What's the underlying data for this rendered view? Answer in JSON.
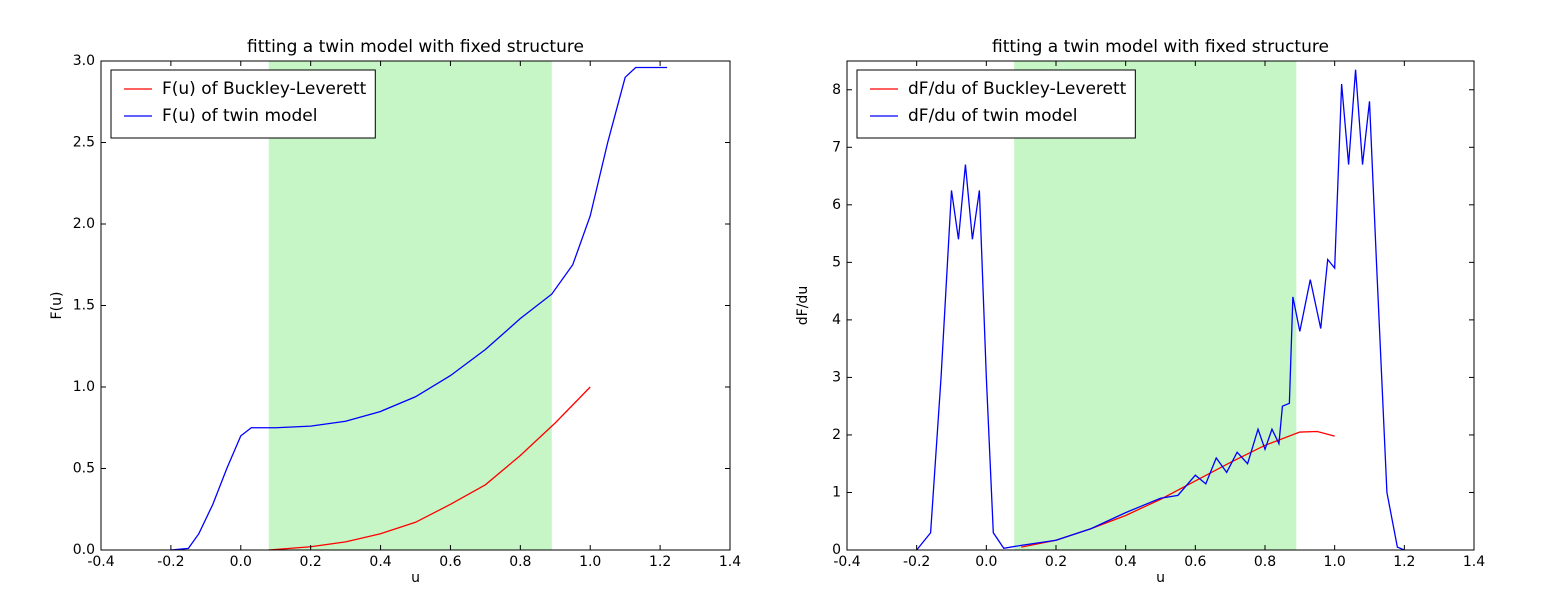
{
  "chart_data": [
    {
      "type": "line",
      "title": "fitting a twin model with fixed structure",
      "xlabel": "u",
      "ylabel": "F(u)",
      "xlim": [
        -0.4,
        1.4
      ],
      "xticks": [
        -0.4,
        -0.2,
        {
          "value": 0,
          "label": "0.0"
        },
        0.2,
        0.4,
        0.6,
        0.8,
        {
          "value": 1,
          "label": "1.0"
        },
        1.2,
        1.4
      ],
      "ylim": [
        0,
        3
      ],
      "yticks": [
        {
          "value": 0,
          "label": "0.0"
        },
        0.5,
        {
          "value": 1,
          "label": "1.0"
        },
        1.5,
        {
          "value": 2,
          "label": "2.0"
        },
        2.5,
        {
          "value": 3,
          "label": "3.0"
        }
      ],
      "grid": false,
      "legend": "upper left",
      "span": [
        0.08,
        0.89
      ],
      "span_color": "#c6f5c6",
      "series": [
        {
          "name": "F(u) of Buckley-Leverett",
          "color": "#ff0000",
          "x": [
            0.08,
            0.2,
            0.3,
            0.4,
            0.5,
            0.6,
            0.7,
            0.8,
            0.9,
            1.0
          ],
          "values": [
            0,
            0.02,
            0.05,
            0.1,
            0.17,
            0.28,
            0.4,
            0.58,
            0.78,
            1.0
          ]
        },
        {
          "name": "F(u) of twin model",
          "color": "#0000ff",
          "x": [
            -0.2,
            -0.15,
            -0.12,
            -0.08,
            -0.04,
            0,
            0.03,
            0.1,
            0.2,
            0.3,
            0.4,
            0.5,
            0.6,
            0.7,
            0.8,
            0.89,
            0.95,
            1.0,
            1.05,
            1.1,
            1.13,
            1.22
          ],
          "values": [
            0,
            0.01,
            0.1,
            0.28,
            0.5,
            0.7,
            0.75,
            0.75,
            0.76,
            0.79,
            0.85,
            0.94,
            1.07,
            1.23,
            1.42,
            1.57,
            1.75,
            2.05,
            2.5,
            2.9,
            2.96,
            2.96
          ]
        }
      ]
    },
    {
      "type": "line",
      "title": "fitting a twin model with fixed structure",
      "xlabel": "u",
      "ylabel": "dF/du",
      "xlim": [
        -0.4,
        1.4
      ],
      "xticks": [
        -0.4,
        -0.2,
        {
          "value": 0,
          "label": "0.0"
        },
        0.2,
        0.4,
        0.6,
        0.8,
        {
          "value": 1,
          "label": "1.0"
        },
        1.2,
        1.4
      ],
      "ylim": [
        0,
        8.5
      ],
      "yticks": [
        0,
        1,
        2,
        3,
        4,
        5,
        6,
        7,
        8
      ],
      "grid": false,
      "legend": "upper left",
      "span": [
        0.08,
        0.89
      ],
      "span_color": "#c6f5c6",
      "series": [
        {
          "name": "dF/du of Buckley-Leverett",
          "color": "#ff0000",
          "x": [
            0.1,
            0.2,
            0.3,
            0.4,
            0.5,
            0.6,
            0.7,
            0.8,
            0.9,
            0.95,
            1.0
          ],
          "values": [
            0.05,
            0.17,
            0.37,
            0.6,
            0.88,
            1.2,
            1.52,
            1.82,
            2.05,
            2.06,
            1.98
          ]
        },
        {
          "name": "dF/du of twin model",
          "color": "#0000ff",
          "x": [
            -0.2,
            -0.16,
            -0.13,
            -0.1,
            -0.08,
            -0.06,
            -0.04,
            -0.02,
            0,
            0.02,
            0.05,
            0.1,
            0.2,
            0.3,
            0.4,
            0.5,
            0.55,
            0.6,
            0.63,
            0.66,
            0.69,
            0.72,
            0.75,
            0.78,
            0.8,
            0.82,
            0.84,
            0.85,
            0.87,
            0.88,
            0.9,
            0.93,
            0.96,
            0.98,
            1.0,
            1.02,
            1.04,
            1.06,
            1.08,
            1.1,
            1.12,
            1.15,
            1.18,
            1.2
          ],
          "values": [
            0,
            0.3,
            3,
            6.25,
            5.4,
            6.7,
            5.4,
            6.25,
            3,
            0.3,
            0.03,
            0.08,
            0.17,
            0.37,
            0.65,
            0.9,
            0.95,
            1.3,
            1.15,
            1.6,
            1.35,
            1.7,
            1.5,
            2.1,
            1.75,
            2.1,
            1.85,
            2.5,
            2.55,
            4.4,
            3.8,
            4.7,
            3.85,
            5.05,
            4.9,
            8.1,
            6.7,
            8.35,
            6.7,
            7.8,
            5,
            1,
            0.05,
            0
          ]
        }
      ]
    }
  ]
}
